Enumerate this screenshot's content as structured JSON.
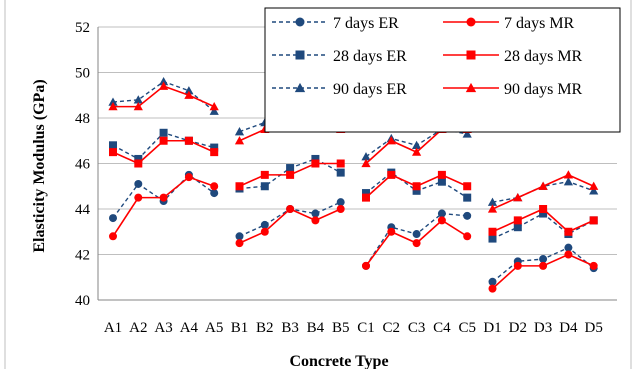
{
  "chart_data": {
    "type": "line",
    "title": "",
    "xlabel": "Concrete Type",
    "ylabel": "Elasticity Modulus (GPa)",
    "ylim": [
      40,
      52
    ],
    "yticks": [
      "40",
      "42",
      "44",
      "46",
      "48",
      "50",
      "52"
    ],
    "grid": "horizontal",
    "legend_position": "top-right",
    "categories": [
      "A1",
      "A2",
      "A3",
      "A4",
      "A5",
      "B1",
      "B2",
      "B3",
      "B4",
      "B5",
      "C1",
      "C2",
      "C3",
      "C4",
      "C5",
      "D1",
      "D2",
      "D3",
      "D4",
      "D5"
    ],
    "groups": [
      [
        0,
        4
      ],
      [
        5,
        9
      ],
      [
        10,
        14
      ],
      [
        15,
        19
      ]
    ],
    "series": [
      {
        "name": "7 days ER",
        "color": "#1F497D",
        "marker": "circle",
        "dash": true,
        "values": [
          43.6,
          45.1,
          44.35,
          45.5,
          44.7,
          42.8,
          43.3,
          44.0,
          43.8,
          44.3,
          41.5,
          43.2,
          42.9,
          43.8,
          43.7,
          40.8,
          41.7,
          41.8,
          42.3,
          41.4
        ]
      },
      {
        "name": "7 days MR",
        "color": "#FF0000",
        "marker": "circle",
        "dash": false,
        "values": [
          42.8,
          44.5,
          44.5,
          45.4,
          45.0,
          42.5,
          43.0,
          44.0,
          43.5,
          44.0,
          41.5,
          43.0,
          42.5,
          43.5,
          42.8,
          40.5,
          41.5,
          41.5,
          42.0,
          41.5
        ]
      },
      {
        "name": "28 days ER",
        "color": "#1F497D",
        "marker": "square",
        "dash": true,
        "values": [
          46.8,
          46.2,
          47.35,
          47.0,
          46.7,
          44.9,
          45.0,
          45.8,
          46.2,
          45.6,
          44.7,
          45.6,
          44.8,
          45.2,
          44.5,
          42.7,
          43.2,
          43.8,
          42.9,
          43.5
        ]
      },
      {
        "name": "28 days MR",
        "color": "#FF0000",
        "marker": "square",
        "dash": false,
        "values": [
          46.5,
          46.0,
          47.0,
          47.0,
          46.5,
          45.0,
          45.5,
          45.5,
          46.0,
          46.0,
          44.5,
          45.5,
          45.0,
          45.5,
          45.0,
          43.0,
          43.5,
          44.0,
          43.0,
          43.5
        ]
      },
      {
        "name": "90 days ER",
        "color": "#1F497D",
        "marker": "triangle",
        "dash": true,
        "values": [
          48.7,
          48.8,
          49.6,
          49.2,
          48.3,
          47.4,
          47.8,
          48.1,
          48.3,
          47.9,
          46.3,
          47.1,
          46.8,
          47.5,
          47.3,
          44.3,
          44.5,
          45.0,
          45.2,
          44.8
        ]
      },
      {
        "name": "90 days MR",
        "color": "#FF0000",
        "marker": "triangle",
        "dash": false,
        "values": [
          48.5,
          48.5,
          49.4,
          49.0,
          48.5,
          47.0,
          47.5,
          48.0,
          48.0,
          47.5,
          46.0,
          47.0,
          46.5,
          47.5,
          47.5,
          44.0,
          44.5,
          45.0,
          45.5,
          45.0
        ]
      }
    ]
  }
}
